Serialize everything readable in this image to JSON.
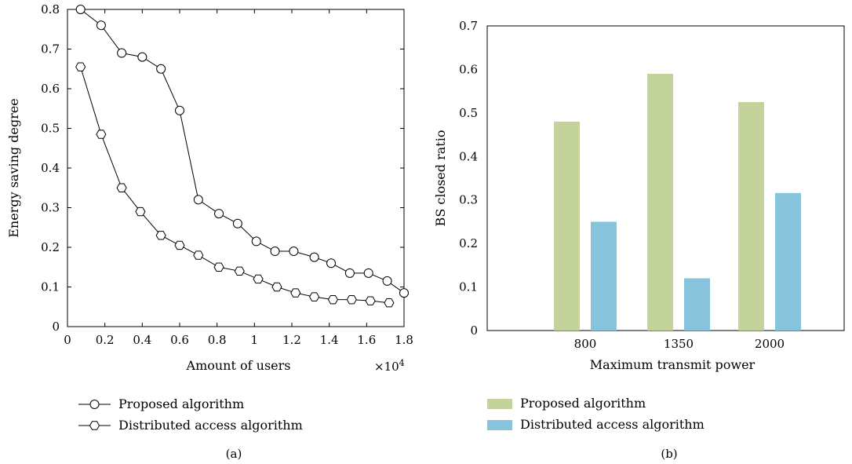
{
  "chart_data": [
    {
      "type": "line",
      "panel_label": "(a)",
      "xlabel": "Amount of users",
      "ylabel": "Energy saving degree",
      "x_multiplier": "×10",
      "x_multiplier_exp": "4",
      "xlim": [
        0,
        1.8
      ],
      "ylim": [
        0,
        0.8
      ],
      "xticks": [
        0,
        0.2,
        0.4,
        0.6,
        0.8,
        1,
        1.2,
        1.4,
        1.6,
        1.8
      ],
      "xtick_labels": [
        "0",
        "0.2",
        "0.4",
        "0.6",
        "0.8",
        "1",
        "1.2",
        "1.4",
        "1.6",
        "1.8"
      ],
      "yticks": [
        0,
        0.1,
        0.2,
        0.3,
        0.4,
        0.5,
        0.6,
        0.7,
        0.8
      ],
      "ytick_labels": [
        "0",
        "0.1",
        "0.2",
        "0.3",
        "0.4",
        "0.5",
        "0.6",
        "0.7",
        "0.8"
      ],
      "grid": false,
      "legend_position": "below",
      "series": [
        {
          "name": "Proposed algorithm",
          "marker": "circle",
          "x": [
            0.07,
            0.18,
            0.29,
            0.4,
            0.5,
            0.6,
            0.7,
            0.81,
            0.91,
            1.01,
            1.11,
            1.21,
            1.32,
            1.41,
            1.51,
            1.61,
            1.71,
            1.8
          ],
          "y": [
            0.8,
            0.76,
            0.69,
            0.68,
            0.65,
            0.545,
            0.32,
            0.285,
            0.26,
            0.215,
            0.19,
            0.19,
            0.175,
            0.16,
            0.135,
            0.135,
            0.115,
            0.085
          ]
        },
        {
          "name": "Distributed access algorithm",
          "marker": "hexagon",
          "x": [
            0.07,
            0.18,
            0.29,
            0.39,
            0.5,
            0.6,
            0.7,
            0.81,
            0.92,
            1.02,
            1.12,
            1.22,
            1.32,
            1.42,
            1.52,
            1.62,
            1.72
          ],
          "y": [
            0.655,
            0.485,
            0.35,
            0.29,
            0.23,
            0.205,
            0.18,
            0.15,
            0.14,
            0.12,
            0.1,
            0.085,
            0.075,
            0.068,
            0.068,
            0.065,
            0.06
          ]
        }
      ]
    },
    {
      "type": "bar",
      "panel_label": "(b)",
      "xlabel": "Maximum transmit power",
      "ylabel": "BS closed ratio",
      "categories": [
        "800",
        "1350",
        "2000"
      ],
      "ylim": [
        0,
        0.7
      ],
      "yticks": [
        0,
        0.1,
        0.2,
        0.3,
        0.4,
        0.5,
        0.6,
        0.7
      ],
      "ytick_labels": [
        "0",
        "0.1",
        "0.2",
        "0.3",
        "0.4",
        "0.5",
        "0.6",
        "0.7"
      ],
      "grid": false,
      "legend_position": "below",
      "series": [
        {
          "name": "Proposed algorithm",
          "color": "#c4d39c",
          "values": [
            0.48,
            0.59,
            0.525
          ]
        },
        {
          "name": "Distributed access algorithm",
          "color": "#87c4dc",
          "values": [
            0.25,
            0.12,
            0.316
          ]
        }
      ]
    }
  ]
}
